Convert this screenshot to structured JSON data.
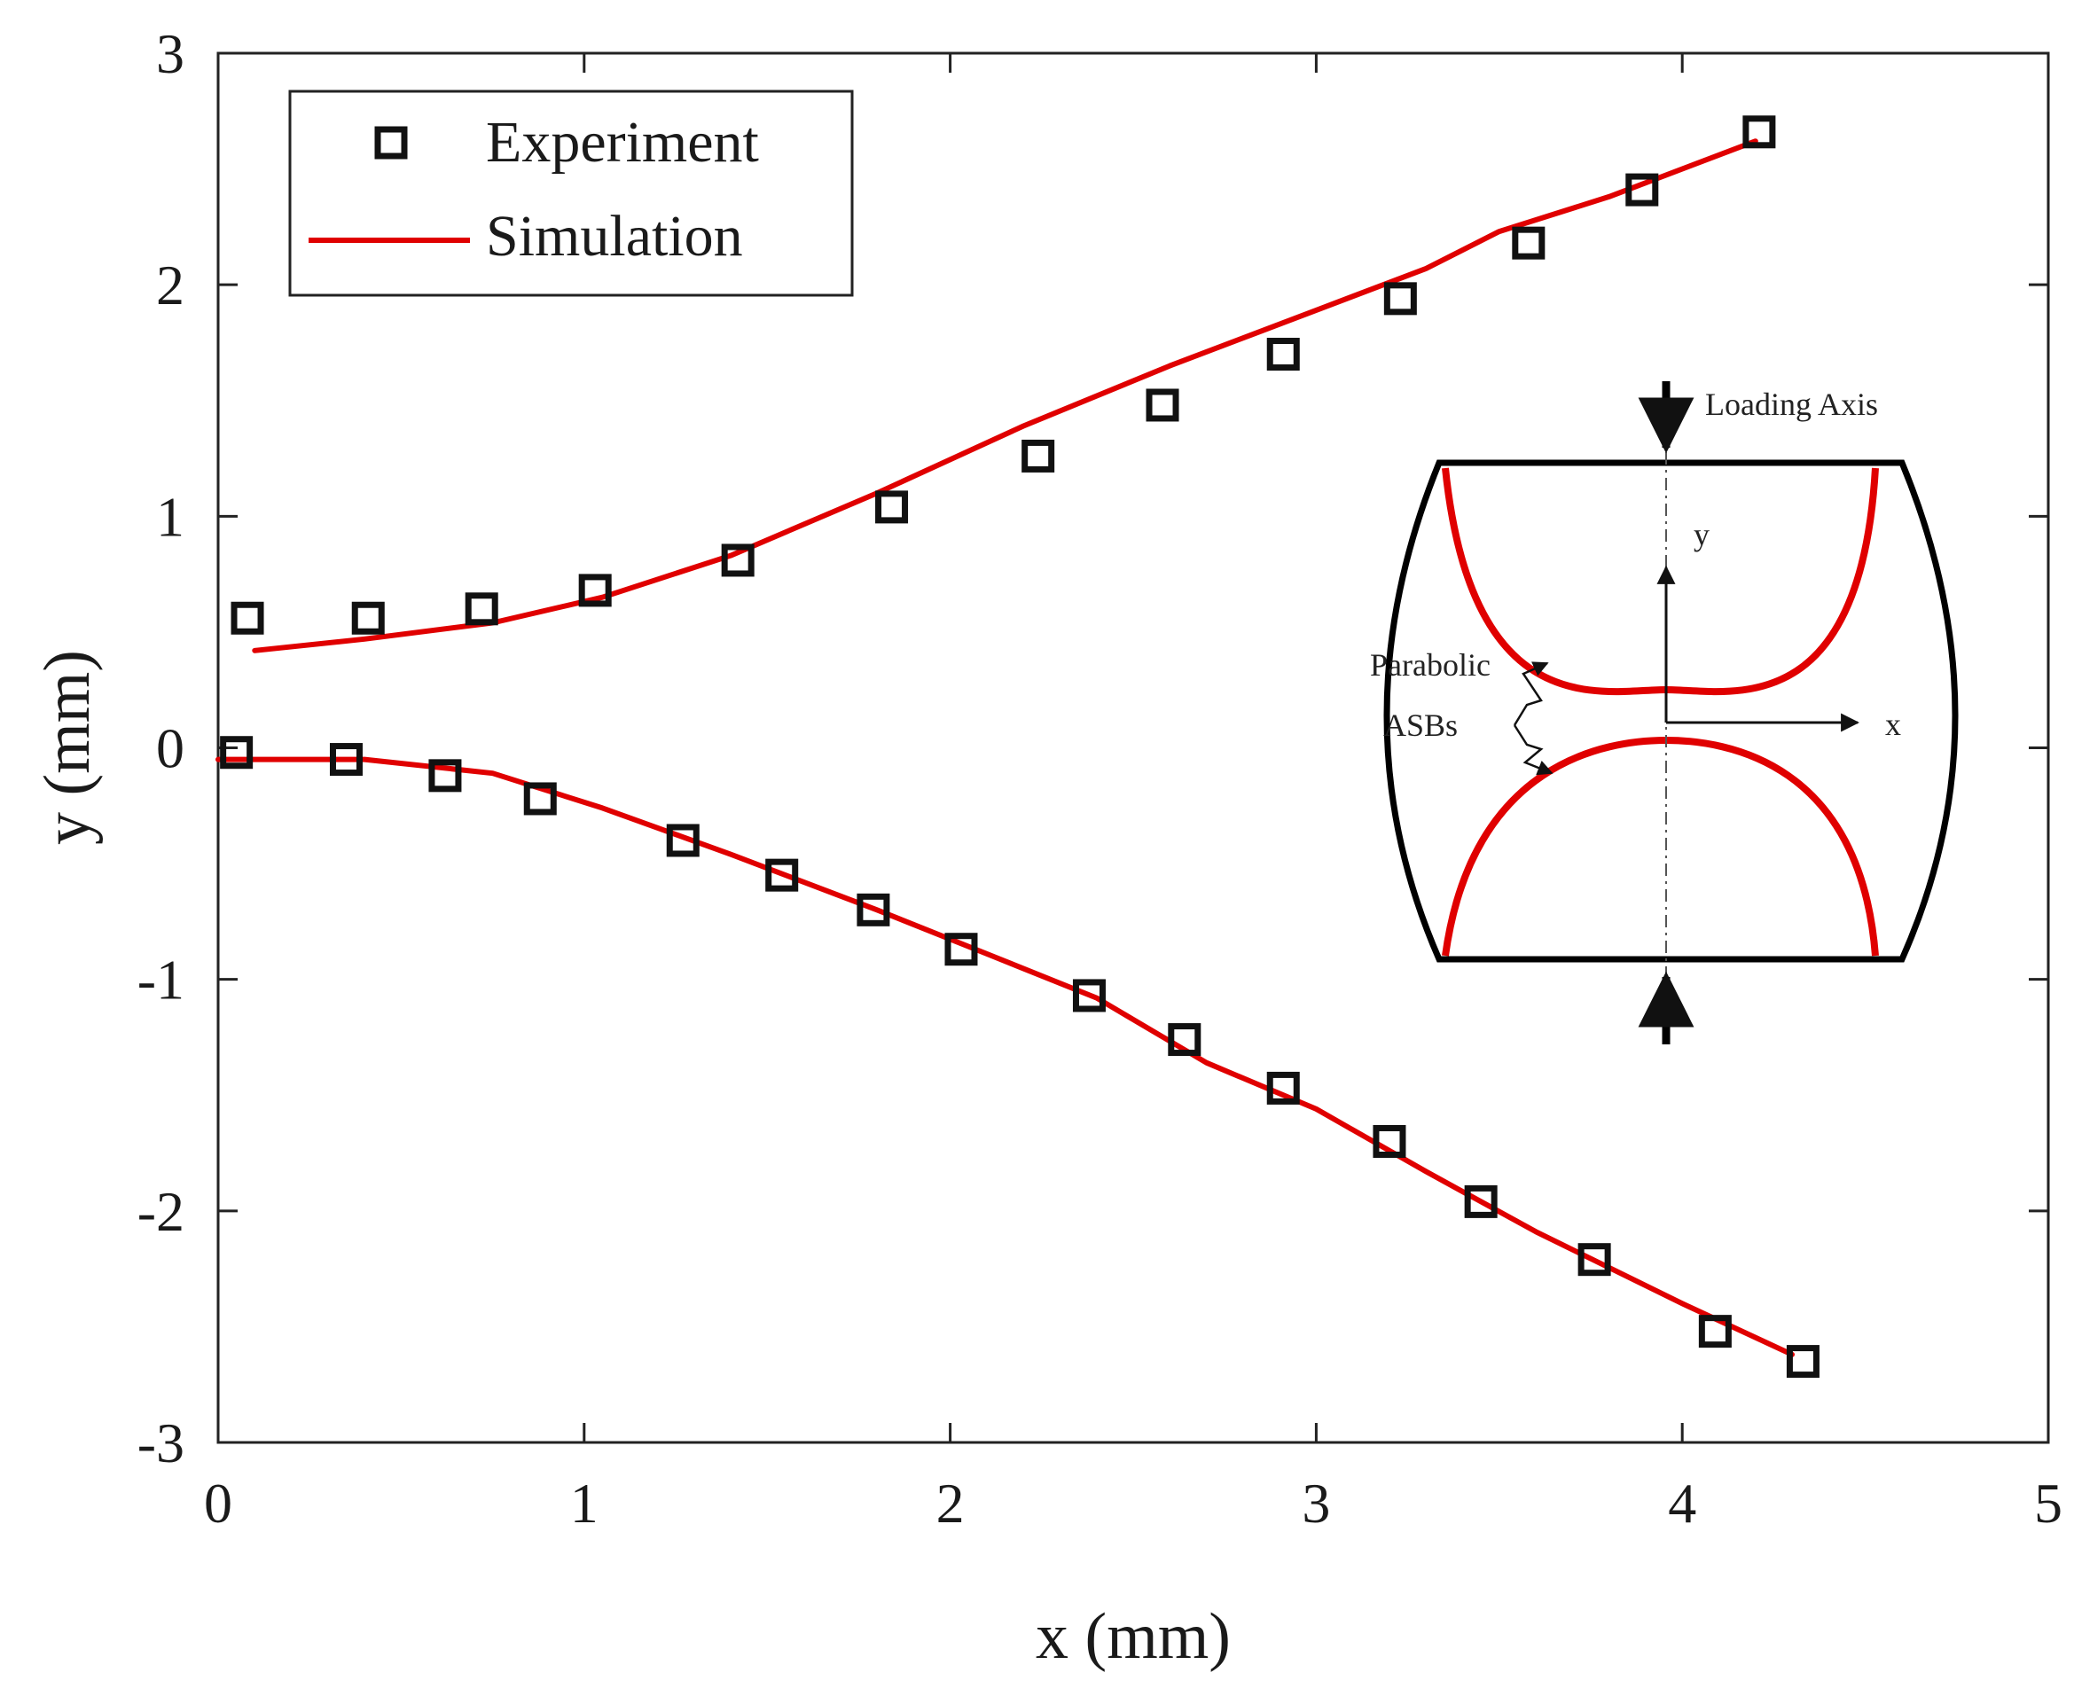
{
  "chart_data": {
    "type": "scatter",
    "title": "",
    "xlabel": "x (mm)",
    "ylabel": "y (mm)",
    "xlim": [
      0,
      5
    ],
    "ylim": [
      -3,
      3
    ],
    "xticks": [
      "0",
      "1",
      "2",
      "3",
      "4",
      "5"
    ],
    "yticks": [
      "3",
      "2",
      "1",
      "0",
      "-1",
      "-2",
      "-3"
    ],
    "grid": false,
    "legend": {
      "position": "top-left",
      "entries": [
        {
          "name": "Experiment",
          "marker": "open-square",
          "color": "#111111"
        },
        {
          "name": "Simulation",
          "marker": "line",
          "color": "#e00000"
        }
      ]
    },
    "series": [
      {
        "name": "Experiment",
        "kind": "scatter",
        "branch": "upper",
        "x": [
          0.08,
          0.41,
          0.72,
          1.03,
          1.42,
          1.84,
          2.24,
          2.58,
          2.91,
          3.23,
          3.58,
          3.89,
          4.21
        ],
        "y": [
          0.56,
          0.56,
          0.6,
          0.68,
          0.81,
          1.04,
          1.26,
          1.48,
          1.7,
          1.94,
          2.18,
          2.41,
          2.66
        ]
      },
      {
        "name": "Experiment",
        "kind": "scatter",
        "branch": "lower",
        "x": [
          0.05,
          0.35,
          0.62,
          0.88,
          1.27,
          1.54,
          1.79,
          2.03,
          2.38,
          2.64,
          2.91,
          3.2,
          3.45,
          3.76,
          4.09,
          4.33
        ],
        "y": [
          -0.02,
          -0.05,
          -0.12,
          -0.22,
          -0.4,
          -0.55,
          -0.7,
          -0.87,
          -1.07,
          -1.26,
          -1.47,
          -1.7,
          -1.96,
          -2.21,
          -2.52,
          -2.65
        ]
      },
      {
        "name": "Simulation",
        "kind": "line",
        "branch": "upper",
        "x": [
          0.1,
          0.4,
          0.75,
          1.05,
          1.4,
          1.8,
          2.2,
          2.6,
          3.0,
          3.3,
          3.5,
          3.8,
          4.2
        ],
        "y": [
          0.42,
          0.47,
          0.54,
          0.65,
          0.83,
          1.1,
          1.39,
          1.65,
          1.89,
          2.07,
          2.23,
          2.38,
          2.62
        ]
      },
      {
        "name": "Simulation",
        "kind": "line",
        "branch": "lower",
        "x": [
          0.0,
          0.4,
          0.75,
          1.05,
          1.4,
          1.8,
          2.1,
          2.4,
          2.7,
          3.0,
          3.3,
          3.6,
          4.0,
          4.3
        ],
        "y": [
          -0.05,
          -0.05,
          -0.11,
          -0.26,
          -0.46,
          -0.7,
          -0.89,
          -1.08,
          -1.36,
          -1.56,
          -1.83,
          -2.09,
          -2.4,
          -2.62
        ]
      }
    ],
    "annotations": {
      "inset_loading_axis": "Loading Axis",
      "inset_y": "y",
      "inset_x": "x",
      "inset_parabolic": "Parabolic",
      "inset_asbs": "ASBs"
    },
    "colors": {
      "simulation": "#e00000",
      "experiment": "#111111",
      "inset_band": "#e00000"
    }
  }
}
